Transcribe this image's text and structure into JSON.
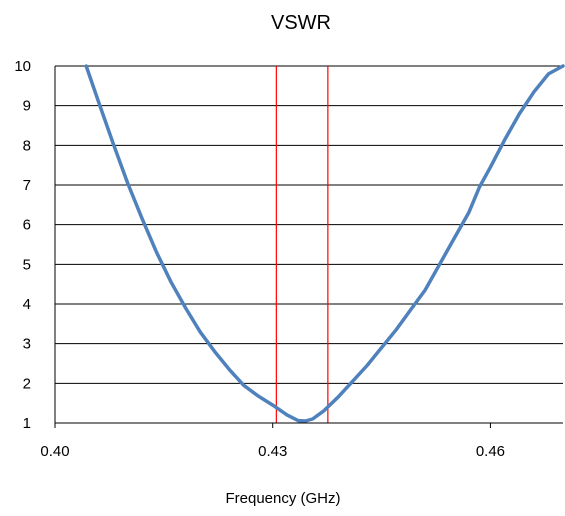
{
  "chart_data": {
    "type": "line",
    "title": "VSWR",
    "xlabel": "Frequency (GHz)",
    "ylabel": "",
    "xlim": [
      0.4,
      0.47
    ],
    "ylim": [
      1,
      10
    ],
    "x_ticks": [
      {
        "value": 0.4,
        "label": "0.40"
      },
      {
        "value": 0.43,
        "label": "0.43"
      },
      {
        "value": 0.46,
        "label": "0.46"
      }
    ],
    "y_ticks": [
      {
        "value": 1,
        "label": "1"
      },
      {
        "value": 2,
        "label": "2"
      },
      {
        "value": 3,
        "label": "3"
      },
      {
        "value": 4,
        "label": "4"
      },
      {
        "value": 5,
        "label": "5"
      },
      {
        "value": 6,
        "label": "6"
      },
      {
        "value": 7,
        "label": "7"
      },
      {
        "value": 8,
        "label": "8"
      },
      {
        "value": 9,
        "label": "9"
      },
      {
        "value": 10,
        "label": "10"
      }
    ],
    "grid": "horizontal",
    "legend": "none",
    "series": [
      {
        "color": "#4f81bd",
        "x": [
          0.4043,
          0.406,
          0.408,
          0.41,
          0.412,
          0.414,
          0.416,
          0.418,
          0.42,
          0.422,
          0.424,
          0.426,
          0.428,
          0.43,
          0.432,
          0.4335,
          0.4345,
          0.4355,
          0.437,
          0.439,
          0.441,
          0.443,
          0.445,
          0.447,
          0.449,
          0.451,
          0.453,
          0.455,
          0.457,
          0.4585,
          0.46,
          0.462,
          0.464,
          0.466,
          0.468,
          0.47
        ],
        "y": [
          10.0,
          9.1,
          8.05,
          7.05,
          6.15,
          5.3,
          4.55,
          3.9,
          3.3,
          2.8,
          2.35,
          1.95,
          1.68,
          1.45,
          1.2,
          1.06,
          1.05,
          1.1,
          1.3,
          1.65,
          2.05,
          2.45,
          2.9,
          3.35,
          3.85,
          4.35,
          5.0,
          5.65,
          6.3,
          6.95,
          7.45,
          8.15,
          8.8,
          9.35,
          9.8,
          10.0
        ]
      }
    ],
    "reference_lines": [
      {
        "x": 0.4305,
        "color": "#ff0000"
      },
      {
        "x": 0.4376,
        "color": "#ff0000"
      }
    ]
  }
}
